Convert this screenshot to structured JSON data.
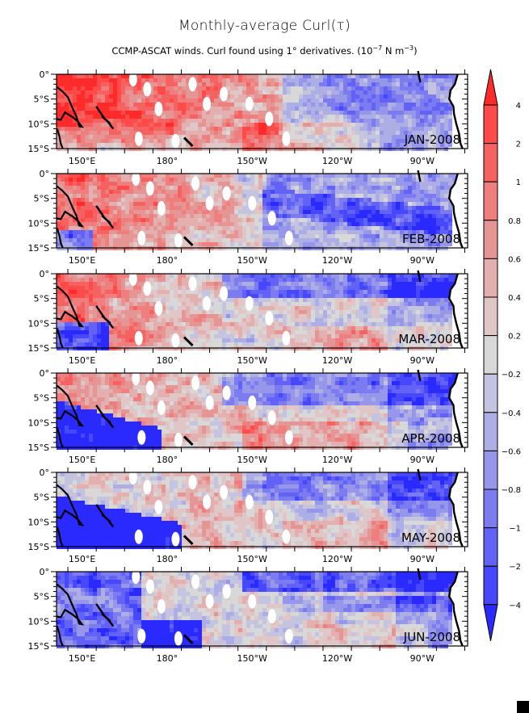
{
  "chart_data": {
    "type": "heatmap",
    "title": "Monthly-average Curl(τ)",
    "subtitle": {
      "text": "CCMP-ASCAT winds. Curl found using 1° derivatives. (10",
      "exp1": "−7",
      "mid": " N m",
      "exp2": "−3",
      "end": ")"
    },
    "xaxis": {
      "ticks": [
        {
          "lon": 150,
          "label": "150°E"
        },
        {
          "lon": 180,
          "label": "180°"
        },
        {
          "lon": 210,
          "label": "150°W"
        },
        {
          "lon": 240,
          "label": "120°W"
        },
        {
          "lon": 270,
          "label": "90°W"
        }
      ],
      "range_lon": [
        141,
        286
      ]
    },
    "yaxis": {
      "ticks": [
        {
          "lat": 0,
          "label": "0°"
        },
        {
          "lat": -5,
          "label": "5°S"
        },
        {
          "lat": -10,
          "label": "10°S"
        },
        {
          "lat": -15,
          "label": "15°S"
        }
      ],
      "range_lat": [
        -15,
        0
      ]
    },
    "panels": [
      {
        "label": "JAN-2008",
        "pattern": "west_red_strong_east_blue"
      },
      {
        "label": "FEB-2008",
        "pattern": "west_red_east_blue_band"
      },
      {
        "label": "MAR-2008",
        "pattern": "west_red_north_blue_band"
      },
      {
        "label": "APR-2008",
        "pattern": "west_red_sw_blue_south_red"
      },
      {
        "label": "MAY-2008",
        "pattern": "sw_blue_south_red_north_blue"
      },
      {
        "label": "JUN-2008",
        "pattern": "mostly_neutral_blue_bands"
      }
    ],
    "colorbar": {
      "levels": [
        {
          "label": "4",
          "color": "#ff2a2a",
          "extend": "max"
        },
        {
          "label": "2",
          "color": "#ff4a4a"
        },
        {
          "label": "1",
          "color": "#f56262"
        },
        {
          "label": "0.8",
          "color": "#ef7f7f"
        },
        {
          "label": "0.6",
          "color": "#e69595"
        },
        {
          "label": "0.4",
          "color": "#e4afaf"
        },
        {
          "label": "0.2",
          "color": "#e0c6c6"
        },
        {
          "label": "-0.2",
          "color": "#d8d8d8"
        },
        {
          "label": "-0.4",
          "color": "#c4c4e0"
        },
        {
          "label": "-0.6",
          "color": "#aeaee6"
        },
        {
          "label": "-0.8",
          "color": "#9696ea"
        },
        {
          "label": "-1",
          "color": "#7c7cf0"
        },
        {
          "label": "-2",
          "color": "#6262f6"
        },
        {
          "label": "-4",
          "color": "#4747fb"
        },
        {
          "label": "",
          "color": "#2a2aff",
          "extend": "min"
        }
      ],
      "tick_labels": [
        "4",
        "2",
        "1",
        "0.8",
        "0.6",
        "0.4",
        "0.2",
        "−0.2",
        "−0.4",
        "−0.6",
        "−0.8",
        "−1",
        "−2",
        "−4"
      ],
      "units": "10^-7 N m^-3"
    }
  }
}
